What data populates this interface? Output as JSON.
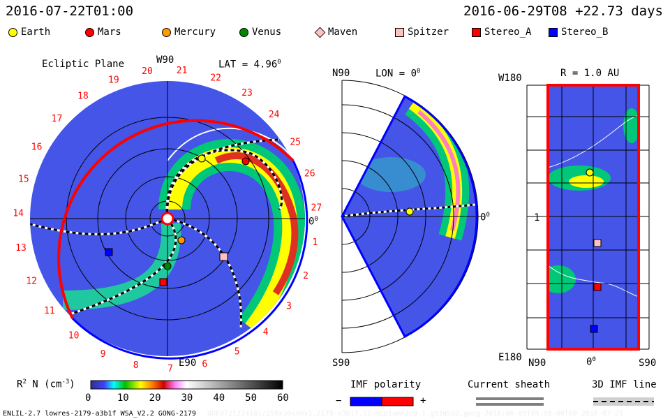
{
  "header": {
    "sim_time": "2016-07-22T01:00",
    "ref_time": "2016-06-29T08 +22.73 days"
  },
  "legend": [
    {
      "label": "Earth",
      "shape": "circle",
      "color": "#ffff00"
    },
    {
      "label": "Mars",
      "shape": "circle",
      "color": "#ff0000"
    },
    {
      "label": "Mercury",
      "shape": "circle",
      "color": "#ff9900"
    },
    {
      "label": "Venus",
      "shape": "circle",
      "color": "#008800"
    },
    {
      "label": "Maven",
      "shape": "diamond",
      "color": "#ffc0c0"
    },
    {
      "label": "Spitzer",
      "shape": "square",
      "color": "#ffc0c0"
    },
    {
      "label": "Stereo_A",
      "shape": "square",
      "color": "#ff0000"
    },
    {
      "label": "Stereo_B",
      "shape": "square",
      "color": "#0000ff"
    }
  ],
  "ecliptic": {
    "title": "Ecliptic Plane",
    "top": "W90",
    "bottom": "E90",
    "lat": "LAT = 4.96",
    "right": "0",
    "deg": "0",
    "carrington": [
      "1",
      "2",
      "3",
      "4",
      "5",
      "6",
      "7",
      "8",
      "9",
      "10",
      "11",
      "12",
      "13",
      "14",
      "15",
      "16",
      "17",
      "18",
      "19",
      "20",
      "21",
      "22",
      "23",
      "24",
      "25",
      "26",
      "27"
    ]
  },
  "meridional": {
    "top": "N90",
    "bottom": "S90",
    "lon": "LON = 0",
    "right": "0",
    "deg": "0"
  },
  "shell": {
    "title": "R = 1.0 AU",
    "top": "W180",
    "bottom": "E180",
    "mid": "1",
    "xlabels": [
      "N90",
      "0",
      "S90"
    ],
    "deg": "0"
  },
  "colorbar": {
    "label": "R",
    "sup": "2",
    "label2": " N (cm",
    "sup2": "-3",
    "label3": ")",
    "ticks": [
      "0",
      "10",
      "20",
      "30",
      "40",
      "50",
      "60"
    ],
    "range": [
      0,
      60
    ]
  },
  "imf": {
    "title": "IMF polarity",
    "minus": "−",
    "plus": "+",
    "neg_color": "#0000ff",
    "pos_color": "#ff0000"
  },
  "sheath": {
    "title": "Current sheath"
  },
  "imfline": {
    "title": "3D IMF line"
  },
  "footer": {
    "run": "ENLIL-2.7 lowres-2179-a3b1f WSA_V2.2 GONG-2179",
    "faint": "QUE0721214101/256x30x90x1.2179-a3b1f.32-mcp1umn1cd-1.g53q5d2.gong-2016:06:05T05:58:00T00    2016-07-21"
  }
}
